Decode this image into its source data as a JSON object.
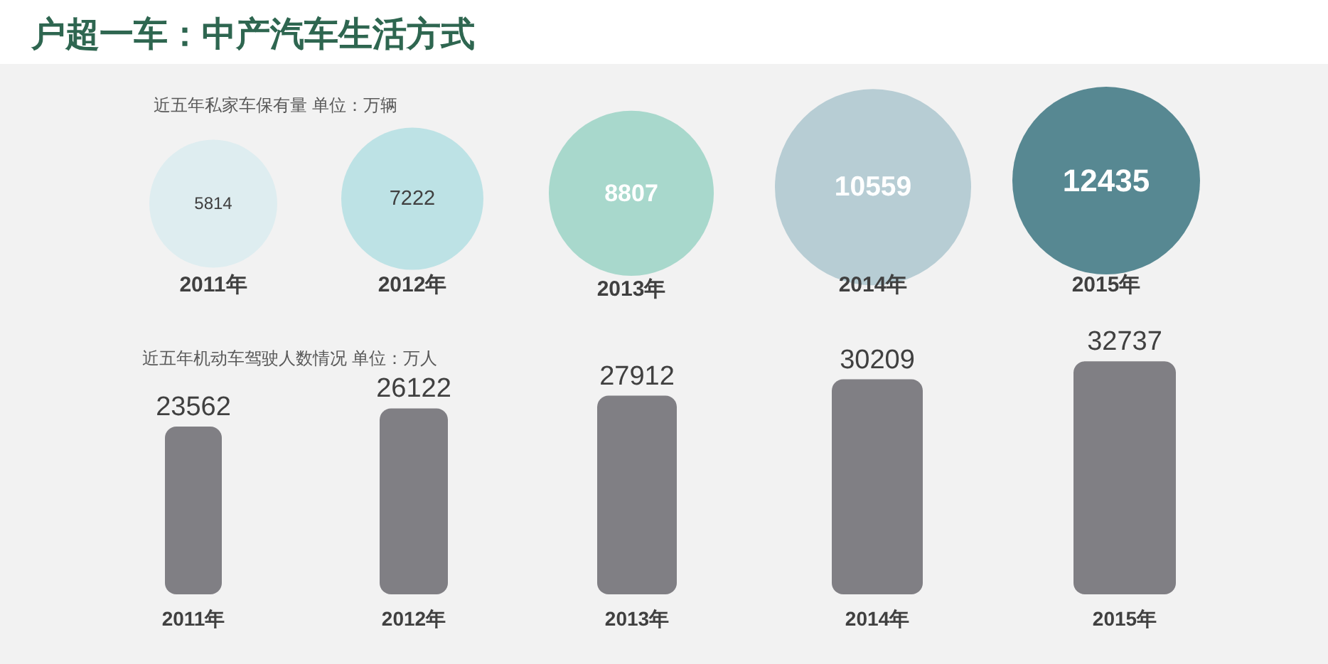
{
  "chart_data": [
    {
      "type": "bubble",
      "title": "户超一车：中产汽车生活方式",
      "subtitle": "近五年私家车保有量   单位：万辆",
      "categories": [
        "2011年",
        "2012年",
        "2013年",
        "2014年",
        "2015年"
      ],
      "values": [
        5814,
        7222,
        8807,
        10559,
        12435
      ],
      "sizes": [
        0.425,
        0.525,
        0.707,
        1,
        0.915
      ],
      "colors": [
        "#deedf0",
        "#bde2e5",
        "#a8d8cc",
        "#b7cdd4",
        "#578892"
      ],
      "data_labels": true
    },
    {
      "type": "bar",
      "title": "近五年机动车驾驶人数情况  单位：万人",
      "categories": [
        "2011年",
        "2012年",
        "2013年",
        "2014年",
        "2015年"
      ],
      "values": [
        23562,
        26122,
        27912,
        30209,
        32737
      ],
      "color": "#807f84",
      "data_labels": true
    }
  ]
}
